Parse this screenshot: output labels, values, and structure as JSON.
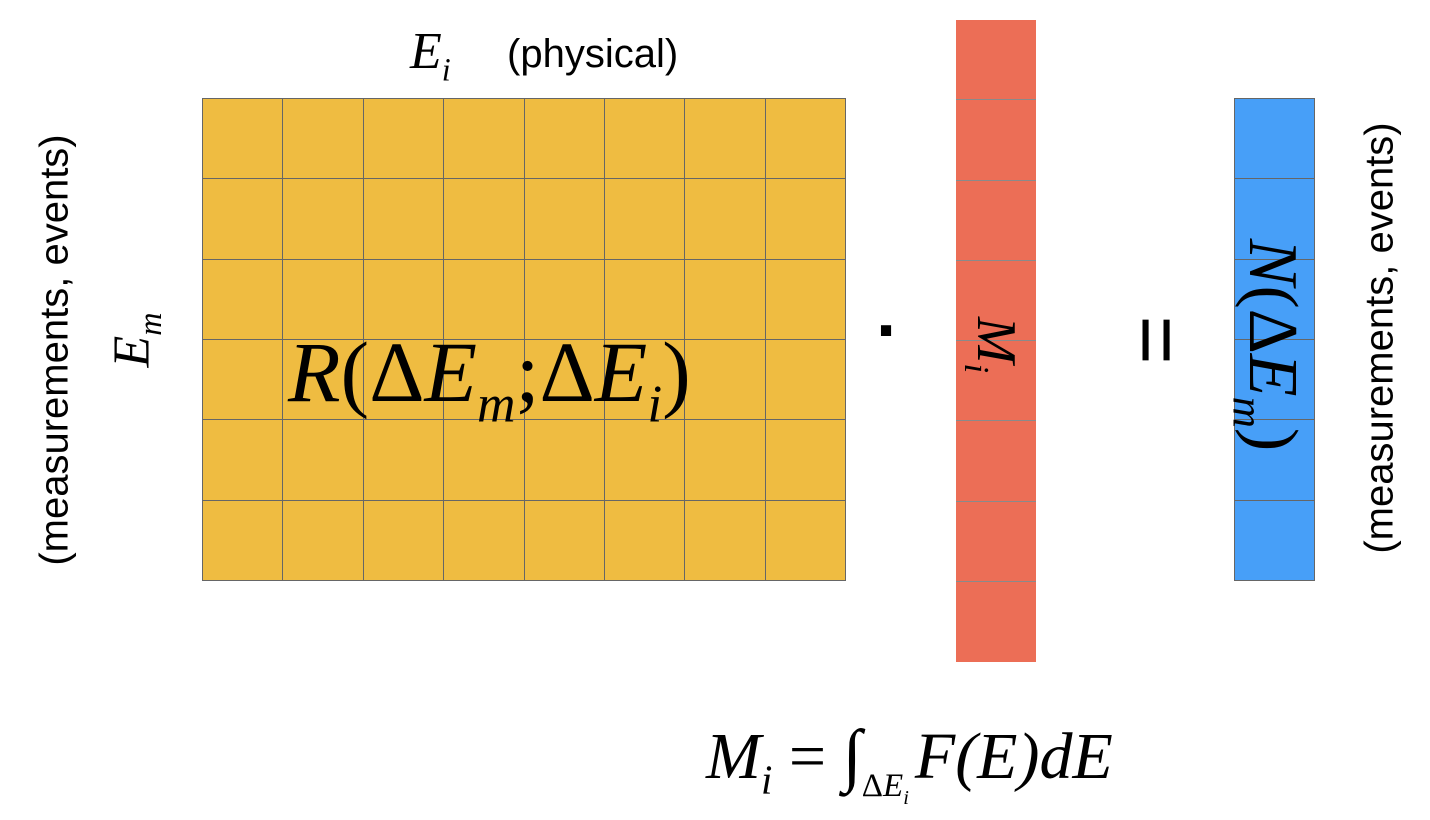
{
  "colors": {
    "response_matrix": "#EFBC41",
    "m_vector": "#EC6E56",
    "n_vector": "#479FF8",
    "grid_line": "#666666"
  },
  "matrix": {
    "rows": 6,
    "cols": 8
  },
  "m_vector": {
    "cells": 8
  },
  "n_vector": {
    "cells": 6
  },
  "labels": {
    "col_axis_var": "E",
    "col_axis_sub": "i",
    "col_axis_note": "(physical)",
    "row_axis_var": "E",
    "row_axis_sub": "m",
    "row_axis_note": "(measurements,  events)",
    "right_axis_note": "(measurements,  events)"
  },
  "operators": {
    "dot": "·",
    "equals": "="
  },
  "formulas": {
    "matrix_label": {
      "R": "R",
      "open": "(",
      "delta1": "Δ",
      "E1": "E",
      "sub1": "m",
      "sep": ";",
      "delta2": "Δ",
      "E2": "E",
      "sub2": "i",
      "close": ")"
    },
    "m_label": {
      "var": "M",
      "sub": "i"
    },
    "n_label": {
      "N": "N",
      "open": "(",
      "delta": "Δ",
      "E": "E",
      "sub": "m",
      "close": ")"
    },
    "definition": {
      "lhs": "M",
      "lhs_sub": "i",
      "eq": " = ",
      "integral": "∫",
      "lim_delta": "Δ",
      "lim_E": "E",
      "lim_sub": "i",
      "integrand": "F(E)dE"
    }
  }
}
